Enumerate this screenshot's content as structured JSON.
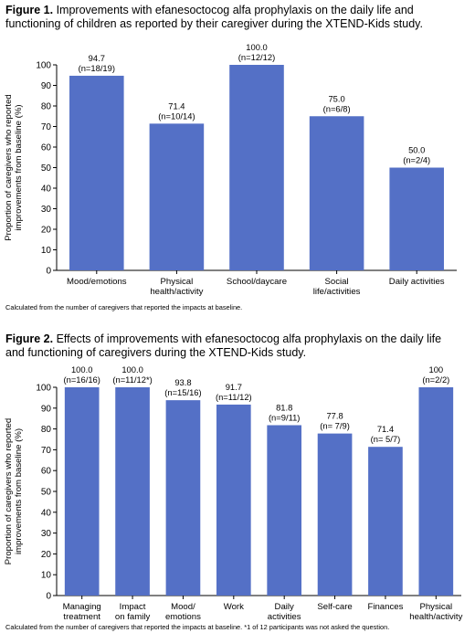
{
  "figure1": {
    "title_bold": "Figure 1.",
    "title_text": " Improvements with efanesoctocog alfa prophylaxis on the daily life and functioning of children as reported by their caregiver during the XTEND-Kids study.",
    "footnote": "Calculated from the number of caregivers that reported the impacts at baseline."
  },
  "figure2": {
    "title_bold": "Figure 2.",
    "title_text": " Effects of improvements with efanesoctocog alfa prophylaxis on the daily life and functioning of caregivers during the XTEND-Kids study.",
    "footnote": "Calculated from the number of caregivers that reported the impacts at baseline. *1 of 12 participants was not asked the question."
  },
  "chart_data": [
    {
      "type": "bar",
      "ylabel": [
        "Proportion of caregivers who reported",
        "improvements from baseline (%)"
      ],
      "ylim": [
        0,
        100
      ],
      "yticks": [
        0,
        10,
        20,
        30,
        40,
        50,
        60,
        70,
        80,
        90,
        100
      ],
      "grid": false,
      "bar_color": "#5470c6",
      "categories": [
        [
          "Mood/emotions"
        ],
        [
          "Physical",
          "health/activity"
        ],
        [
          "School/daycare"
        ],
        [
          "Social",
          "life/activities"
        ],
        [
          "Daily activities"
        ]
      ],
      "values": [
        94.7,
        71.4,
        100.0,
        75.0,
        50.0
      ],
      "value_labels": [
        "94.7",
        "71.4",
        "100.0",
        "75.0",
        "50.0"
      ],
      "n_labels": [
        "(n=18/19)",
        "(n=10/14)",
        "(n=12/12)",
        "(n=6/8)",
        "(n=2/4)"
      ]
    },
    {
      "type": "bar",
      "ylabel": [
        "Proportion of caregivers who reported",
        "improvements from baseline (%)"
      ],
      "ylim": [
        0,
        100
      ],
      "yticks": [
        0,
        10,
        20,
        30,
        40,
        50,
        60,
        70,
        80,
        90,
        100
      ],
      "grid": false,
      "bar_color": "#5470c6",
      "categories": [
        [
          "Managing",
          "treatment"
        ],
        [
          "Impact",
          "on family"
        ],
        [
          "Mood/",
          "emotions"
        ],
        [
          "Work"
        ],
        [
          "Daily",
          "activities"
        ],
        [
          "Self-care"
        ],
        [
          "Finances"
        ],
        [
          "Physical",
          "health/activity"
        ]
      ],
      "values": [
        100.0,
        100.0,
        93.8,
        91.7,
        81.8,
        77.8,
        71.4,
        100
      ],
      "value_labels": [
        "100.0",
        "100.0",
        "93.8",
        "91.7",
        "81.8",
        "77.8",
        "71.4",
        "100"
      ],
      "n_labels": [
        "(n=16/16)",
        "(n=11/12*)",
        "(n=15/16)",
        "(n=11/12)",
        "(n=9/11)",
        "(n= 7/9)",
        "(n= 5/7)",
        "(n=2/2)"
      ]
    }
  ]
}
